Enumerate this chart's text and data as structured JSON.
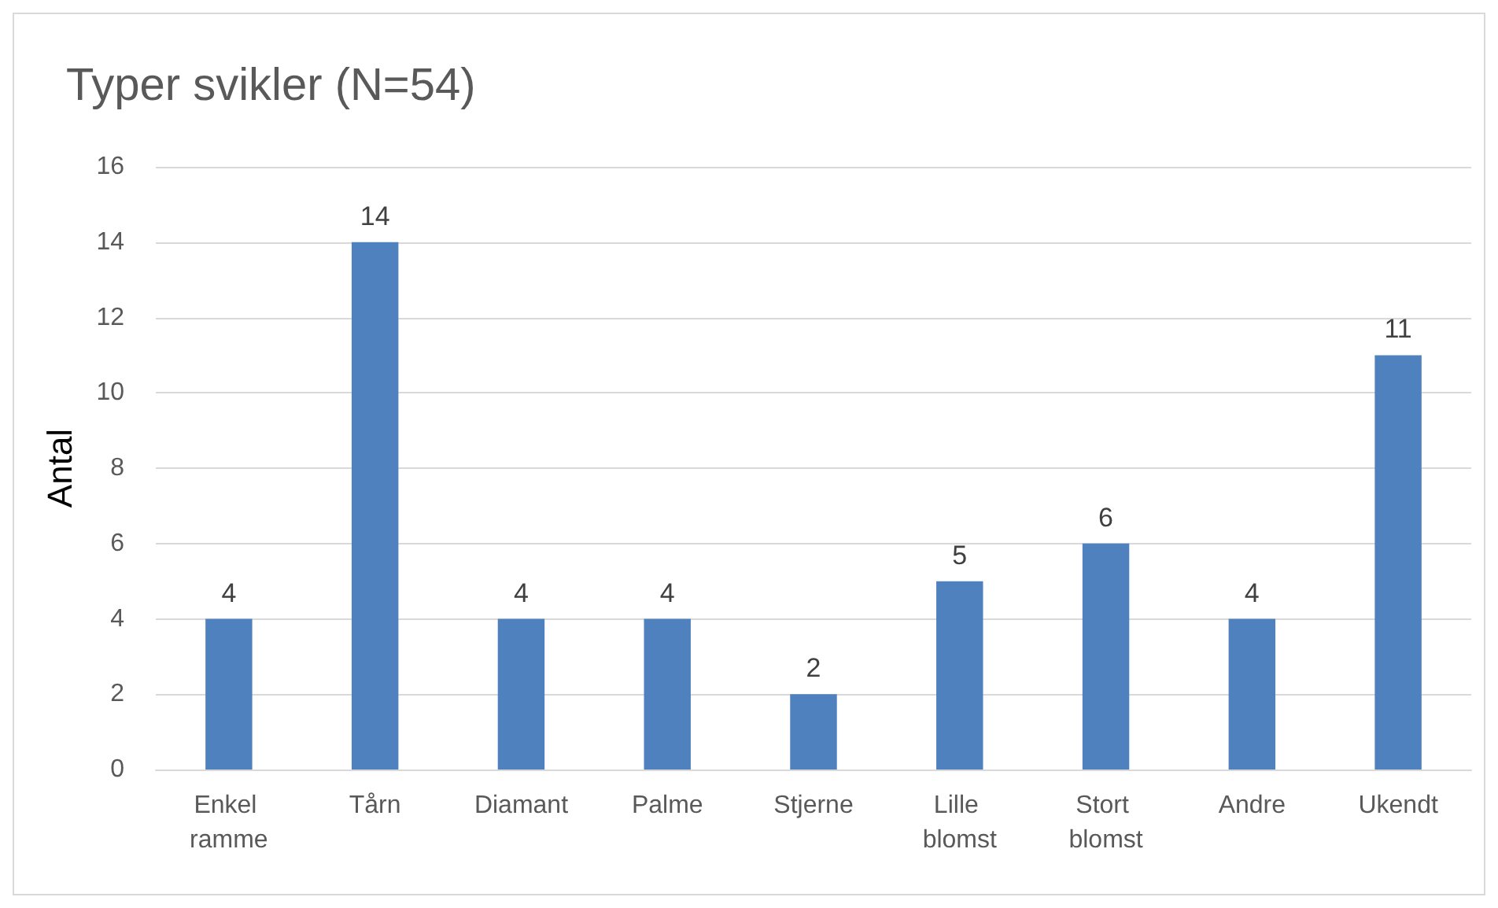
{
  "chart_data": {
    "type": "bar",
    "title": "Typer svikler (N=54)",
    "ylabel": "Antal",
    "categories": [
      "Enkel ramme",
      "Tårn",
      "Diamant",
      "Palme",
      "Stjerne",
      "Lille blomst",
      "Stort blomst",
      "Andre",
      "Ukendt"
    ],
    "values": [
      4,
      14,
      4,
      4,
      2,
      5,
      6,
      4,
      11
    ],
    "color": "#4e81bd",
    "ylim": [
      0,
      16
    ],
    "yticks": [
      0,
      2,
      4,
      6,
      8,
      10,
      12,
      14,
      16
    ],
    "grid": "y",
    "data_labels": true
  }
}
